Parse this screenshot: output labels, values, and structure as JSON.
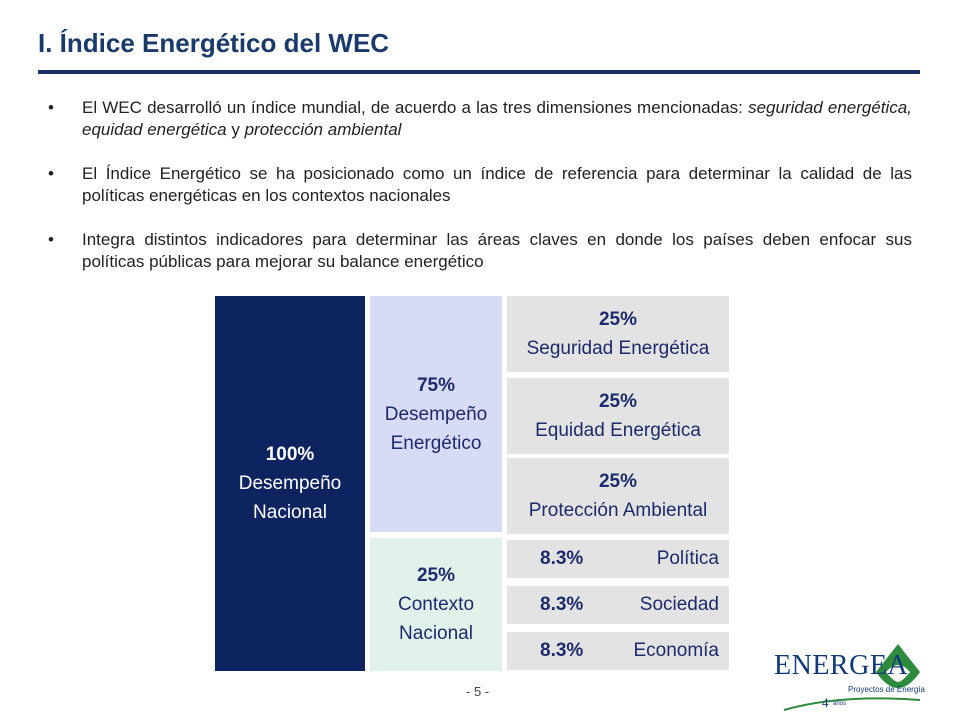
{
  "slide": {
    "title": "I. Índice Energético del WEC",
    "page_number": "- 5 -"
  },
  "bullets": [
    {
      "text": "El WEC desarrolló un índice mundial, de acuerdo a las tres dimensiones mencionadas: ",
      "italic": "seguridad energética, equidad energética",
      "mid": " y ",
      "italic2": "protección ambiental"
    },
    {
      "text": "El Índice Energético se ha posicionado como un índice de referencia para determinar la calidad de las políticas energéticas en los contextos nacionales"
    },
    {
      "text": "Integra distintos indicadores para determinar las áreas claves en donde los países deben enfocar sus políticas públicas para mejorar su balance energético"
    }
  ],
  "bullet_symbol": "•",
  "diagram": {
    "total": {
      "pct": "100%",
      "line1": "Desempeño",
      "line2": "Nacional"
    },
    "desempeno": {
      "pct": "75%",
      "line1": "Desempeño",
      "line2": "Energético"
    },
    "contexto": {
      "pct": "25%",
      "line1": "Contexto",
      "line2": "Nacional"
    },
    "energy_items": [
      {
        "pct": "25%",
        "label": "Seguridad Energética"
      },
      {
        "pct": "25%",
        "label": "Equidad Energética"
      },
      {
        "pct": "25%",
        "label": "Protección Ambiental"
      }
    ],
    "context_items": [
      {
        "pct": "8.3%",
        "label": "Política"
      },
      {
        "pct": "8.3%",
        "label": "Sociedad"
      },
      {
        "pct": "8.3%",
        "label": "Economía"
      }
    ]
  },
  "logo": {
    "name": "ENERGEA",
    "subtitle": "Proyectos de Energía",
    "years": "4",
    "years_label": "años"
  },
  "colors": {
    "title": "#1a3a6b",
    "rule": "#1a2e66",
    "total_box": "#0e2461",
    "desempeno_box": "#d8dbf5",
    "contexto_box": "#e1f2ea",
    "sub_box": "#e3e3e3",
    "logo_green": "#2e8b3d"
  }
}
